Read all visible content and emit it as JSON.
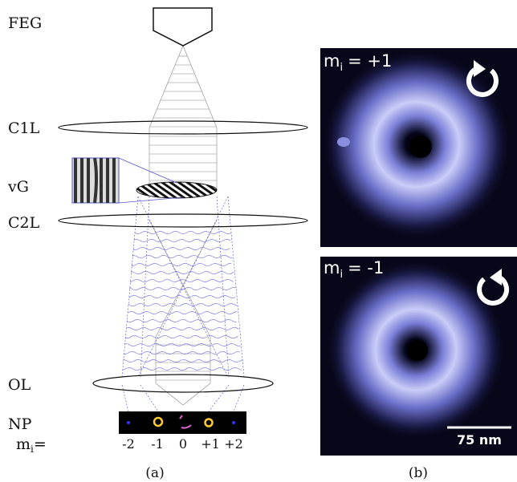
{
  "panel_a": {
    "labels": {
      "gun": "FEG",
      "condenser1": "C1L",
      "vortex_grating": "vG",
      "condenser2": "C2L",
      "objective": "OL",
      "nanoparticle": "NP"
    },
    "mode_axis": {
      "symbol": "m",
      "subscript": "i",
      "equals": "=",
      "modes": [
        "-2",
        "-1",
        "0",
        "+1",
        "+2"
      ]
    },
    "caption": "(a)"
  },
  "panel_b": {
    "images": [
      {
        "symbol": "m",
        "subscript": "i",
        "value": "= +1"
      },
      {
        "symbol": "m",
        "subscript": "i",
        "value": "= -1"
      }
    ],
    "scale_bar": "75 nm",
    "caption": "(b)"
  }
}
